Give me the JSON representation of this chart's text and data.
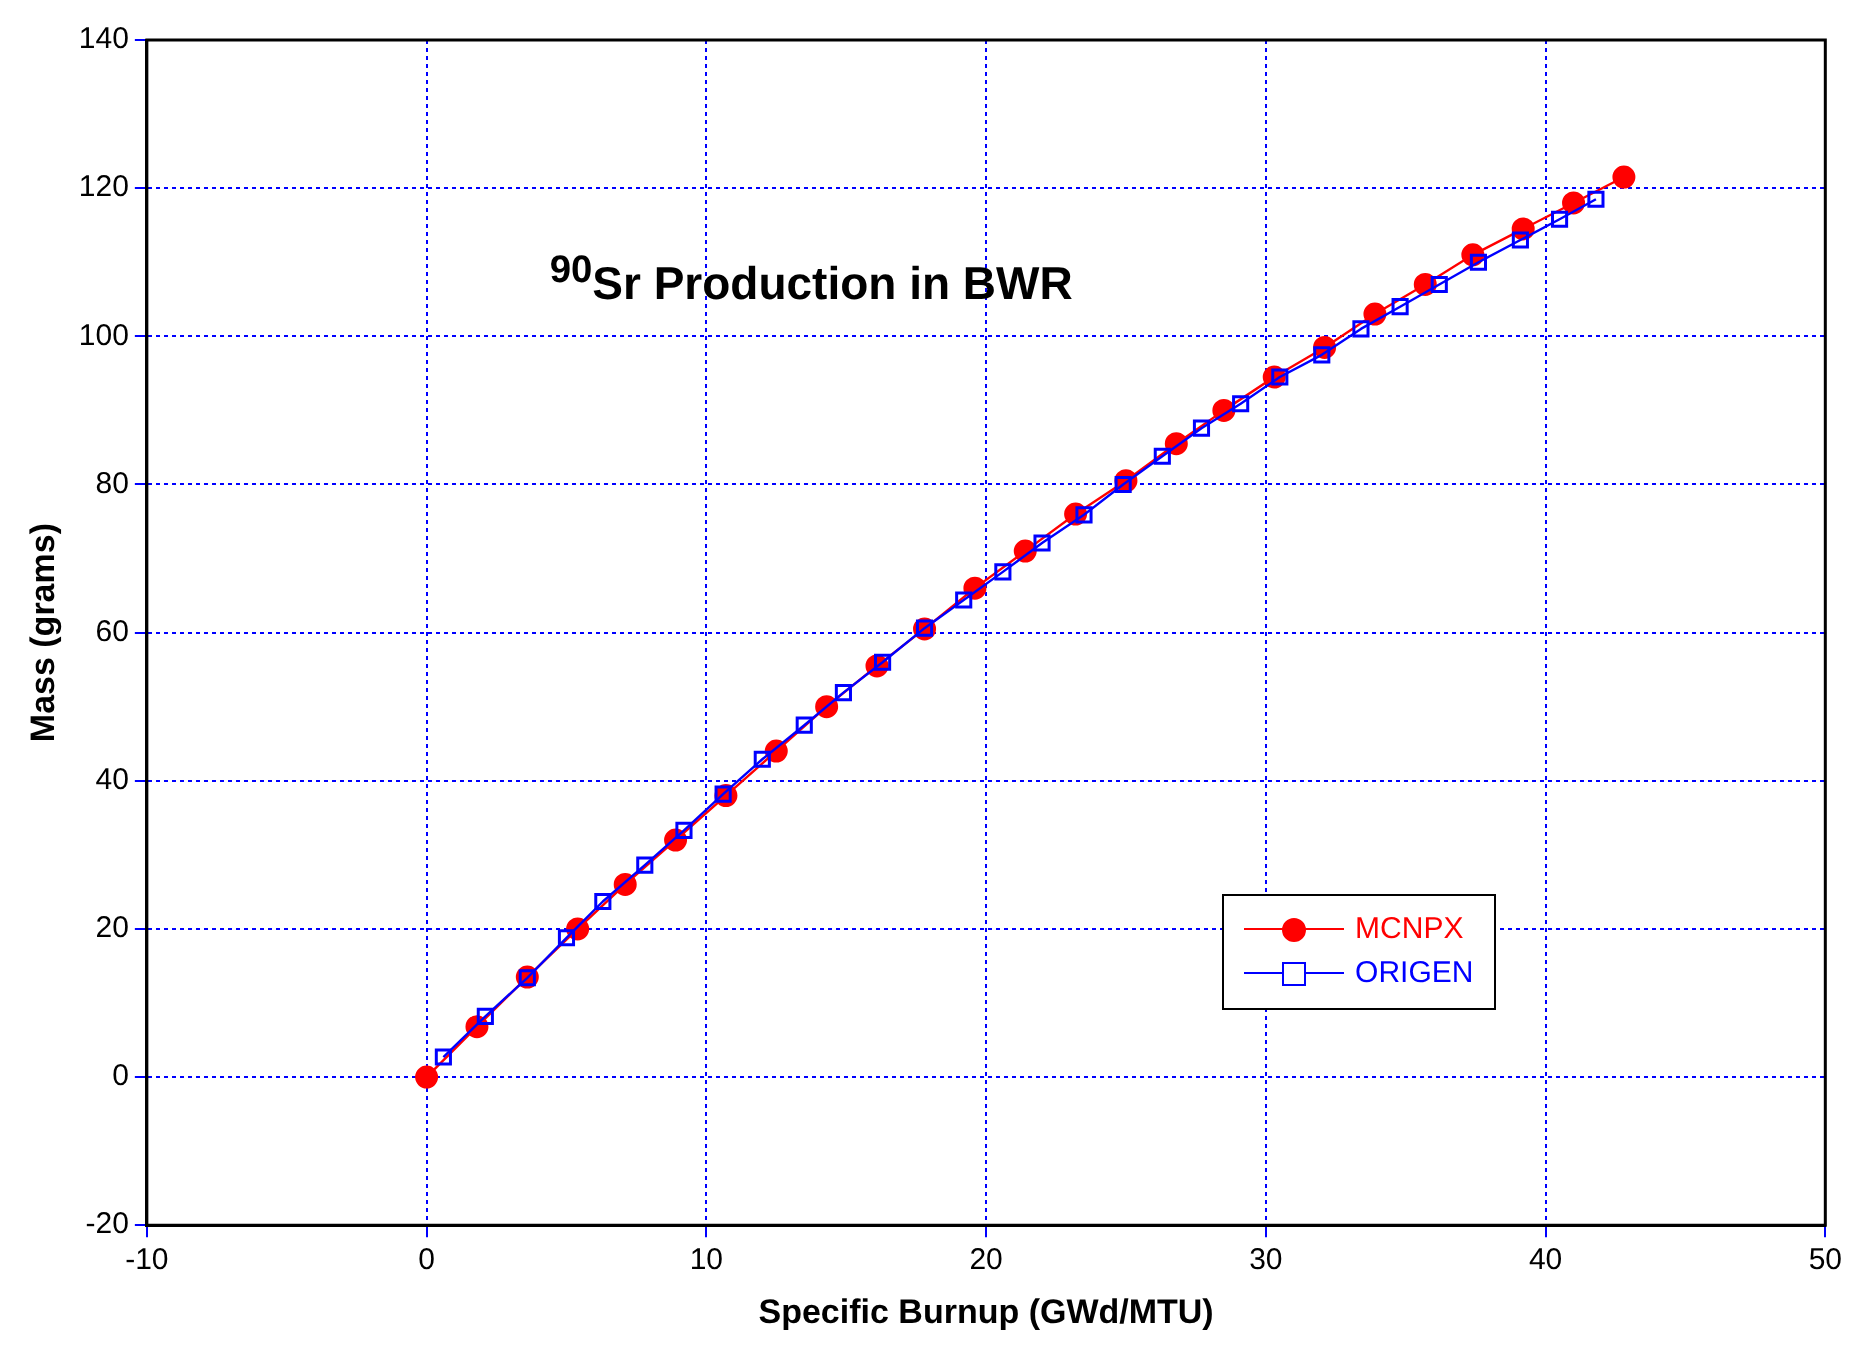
{
  "chart_data": {
    "type": "line",
    "title": "$^{90}$Sr Production in BWR",
    "xlabel": "Specific Burnup (GWd/MTU)",
    "ylabel": "Mass (grams)",
    "xlim": [
      -10,
      50
    ],
    "xticks": [
      -10,
      0,
      10,
      20,
      30,
      40,
      50
    ],
    "ylim": [
      -20,
      140
    ],
    "yticks": [
      -20,
      0,
      20,
      40,
      60,
      80,
      100,
      120,
      140
    ],
    "grid": true,
    "legend": "bottom right",
    "series": [
      {
        "name": "MCNPX",
        "color": "#ff0000",
        "marker": "circle",
        "x": [
          0,
          1.8,
          3.6,
          5.4,
          7.1,
          8.9,
          10.7,
          12.5,
          14.3,
          16.1,
          17.8,
          19.6,
          21.4,
          23.2,
          25.0,
          26.8,
          28.5,
          30.3,
          32.1,
          33.9,
          35.7,
          37.4,
          39.2,
          41.0,
          42.8
        ],
        "values": [
          0,
          6.8,
          13.5,
          20,
          26,
          32,
          38,
          44,
          50,
          55.5,
          60.5,
          66,
          71,
          76,
          80.5,
          85.5,
          90,
          94.5,
          98.5,
          103,
          107,
          111,
          114.5,
          118,
          121.5
        ]
      },
      {
        "name": "ORIGEN",
        "color": "#0000ff",
        "marker": "square",
        "x": [
          0.6,
          2.1,
          3.6,
          5.0,
          6.3,
          7.8,
          9.2,
          10.6,
          12.0,
          13.5,
          14.9,
          16.3,
          17.8,
          19.2,
          20.6,
          22.0,
          23.5,
          24.9,
          26.3,
          27.7,
          29.1,
          30.5,
          32.0,
          33.4,
          34.8,
          36.2,
          37.6,
          39.1,
          40.5,
          41.8
        ],
        "values": [
          2.7,
          8.2,
          13.4,
          18.8,
          23.7,
          28.6,
          33.3,
          38.2,
          42.9,
          47.5,
          51.9,
          56.0,
          60.6,
          64.4,
          68.2,
          72.1,
          75.9,
          80,
          83.8,
          87.6,
          90.9,
          94.5,
          97.5,
          101,
          104,
          107,
          110,
          113,
          115.8,
          118.5
        ]
      }
    ]
  }
}
